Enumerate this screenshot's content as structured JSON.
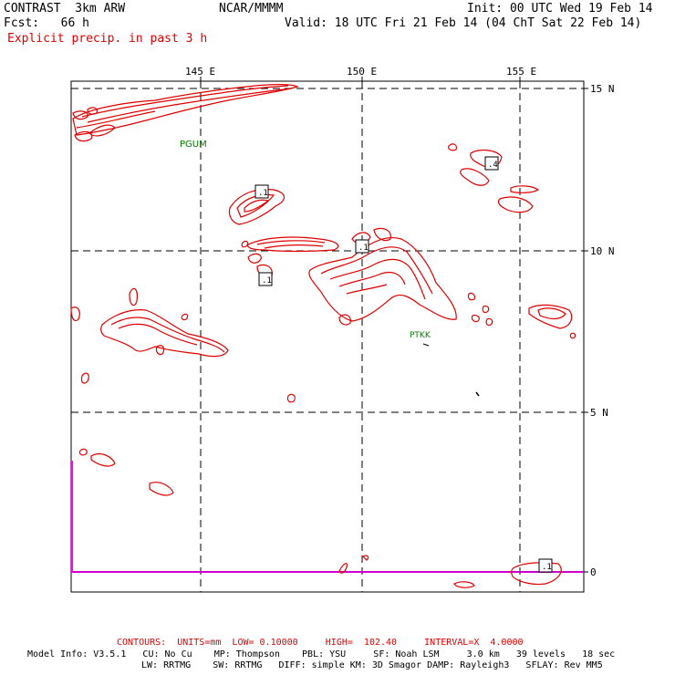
{
  "header": {
    "model_title": "CONTRAST  3km ARW",
    "center": "NCAR/MMMM",
    "init": "Init: 00 UTC Wed 19 Feb 14",
    "fcst": "Fcst:   66 h",
    "valid": "Valid: 18 UTC Fri 21 Feb 14 (04 ChT Sat 22 Feb 14)",
    "field": "Explicit precip. in past 3 h"
  },
  "map": {
    "lon_labels": [
      "145 E",
      "150 E",
      "155 E"
    ],
    "lat_labels": [
      "15 N",
      "10 N",
      "5 N",
      "0"
    ],
    "stations": [
      {
        "id": "PGUM"
      },
      {
        "id": "PTKK"
      }
    ],
    "contour_labels": [
      ".1",
      ".1",
      ".1",
      ".4",
      ".1"
    ],
    "colors": {
      "precip_contour": "#e00000",
      "station": "#008000",
      "grid": "#000000",
      "equator_line": "#cc00cc"
    }
  },
  "footer": {
    "contours": "CONTOURS:  UNITS=mm  LOW= 0.10000     HIGH=  102.40     INTERVAL=X  4.0000",
    "model_info": "Model Info: V3.5.1   CU: No Cu    MP: Thompson    PBL: YSU     SF: Noah LSM     3.0 km   39 levels   18 sec",
    "model_info2": "LW: RRTMG    SW: RRTMG   DIFF: simple KM: 3D Smagor DAMP: Rayleigh3   SFLAY: Rev MM5"
  }
}
